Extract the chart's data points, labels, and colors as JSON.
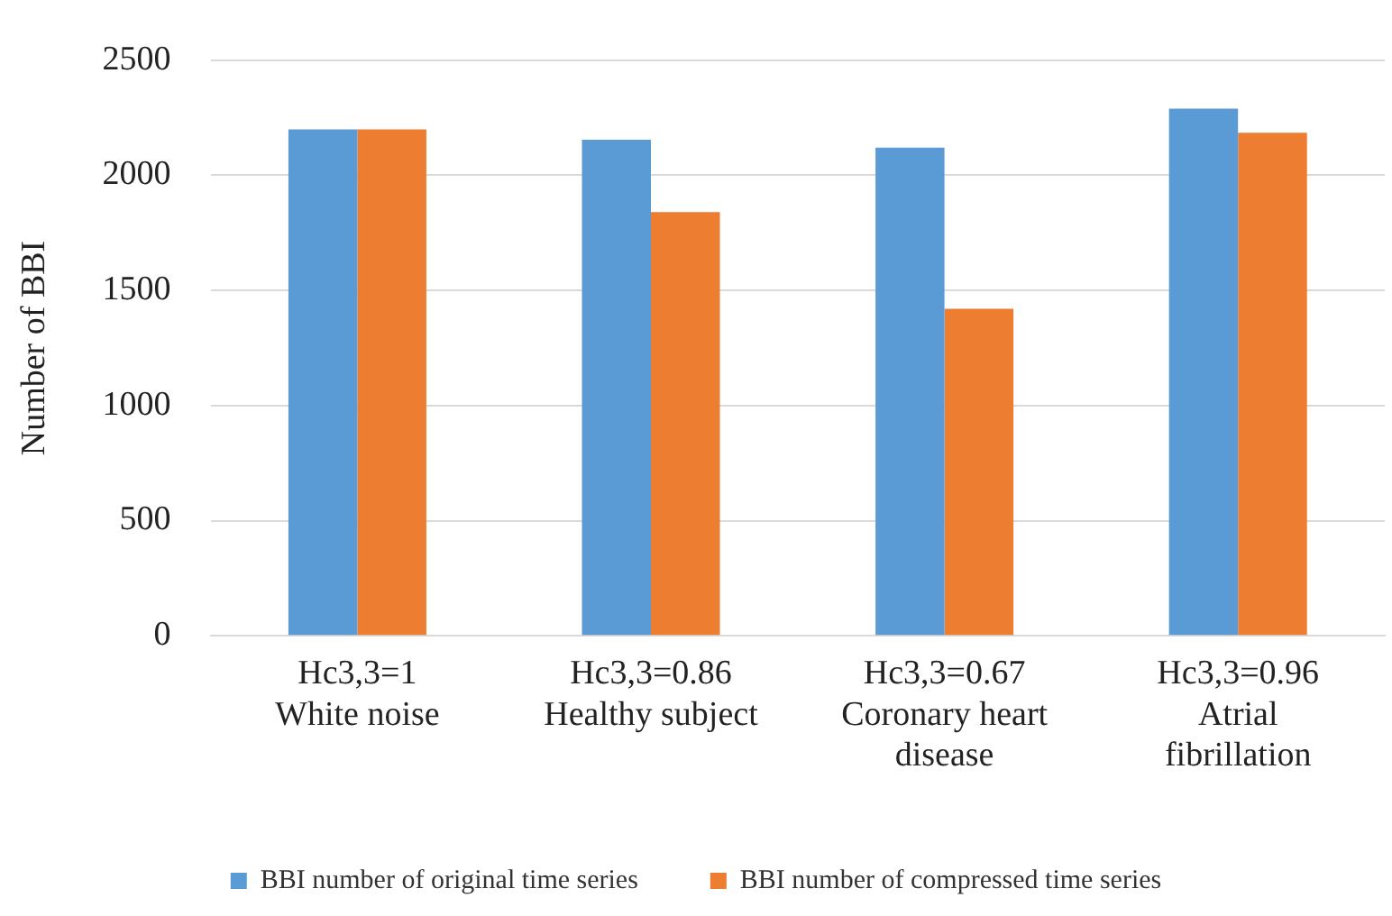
{
  "chart_data": {
    "type": "bar",
    "ylabel": "Number of BBI",
    "categories": [
      "Hc3,3=1\nWhite noise",
      "Hc3,3=0.86\nHealthy subject",
      "Hc3,3=0.67\nCoronary heart disease",
      "Hc3,3=0.96\nAtrial fibrillation"
    ],
    "series": [
      {
        "name": "BBI number of original time series",
        "color": "#5b9bd5",
        "values": [
          2200,
          2155,
          2120,
          2290
        ]
      },
      {
        "name": "BBI number of compressed time series",
        "color": "#ed7d31",
        "values": [
          2200,
          1840,
          1420,
          2185
        ]
      }
    ],
    "ylim": [
      0,
      2500
    ],
    "yticks": [
      0,
      500,
      1000,
      1500,
      2000,
      2500
    ],
    "grid": "y",
    "legend": "bottom"
  }
}
